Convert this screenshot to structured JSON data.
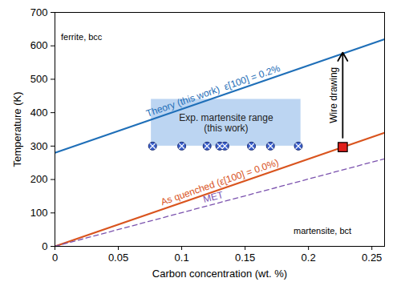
{
  "chart_data": {
    "type": "line",
    "x_label": "Carbon concentration (wt. %)",
    "y_label": "Temperature (K)",
    "xlim": [
      0,
      0.26
    ],
    "ylim": [
      0,
      700
    ],
    "xticks": [
      0,
      0.05,
      0.1,
      0.15,
      0.2,
      0.25
    ],
    "yticks": [
      0,
      100,
      200,
      300,
      400,
      500,
      600,
      700
    ],
    "grid": false,
    "series": [
      {
        "name": "Theory (this work)  ε[100] = 0.2%",
        "color": "#1f6fb8",
        "line_style": "solid",
        "x": [
          0,
          0.26
        ],
        "values": [
          280,
          620
        ]
      },
      {
        "name": "As quenched (ε[100] = 0.0%)",
        "color": "#d9541e",
        "line_style": "solid",
        "x": [
          0,
          0.26
        ],
        "values": [
          0,
          340
        ]
      },
      {
        "name": "MET",
        "color": "#7b52ae",
        "line_style": "dashed",
        "x": [
          0,
          0.26
        ],
        "values": [
          0,
          262
        ]
      },
      {
        "type": "scatter",
        "color": "#3a5fcd",
        "marker": "circle-x",
        "x": [
          0.077,
          0.1,
          0.12,
          0.13,
          0.134,
          0.155,
          0.17,
          0.192
        ],
        "values": [
          300,
          300,
          300,
          300,
          300,
          300,
          300,
          300
        ]
      },
      {
        "type": "scatter",
        "color": "#e0201b",
        "marker": "square",
        "x": [
          0.227
        ],
        "values": [
          297
        ]
      }
    ],
    "regions": [
      {
        "label": "Exp. martensite range\n(this work)",
        "color": "#bcd5f2",
        "x": [
          0.076,
          0.194
        ],
        "y": [
          300,
          440
        ]
      }
    ],
    "arrows": [
      {
        "label": "Wire drawing",
        "color": "#000000",
        "x": 0.227,
        "y": [
          325,
          580
        ]
      }
    ],
    "annotations": [
      {
        "text": "ferrite, bcc",
        "x": 0.021,
        "y": 625
      },
      {
        "text": "martensite, bct",
        "x": 0.211,
        "y": 45
      }
    ]
  }
}
